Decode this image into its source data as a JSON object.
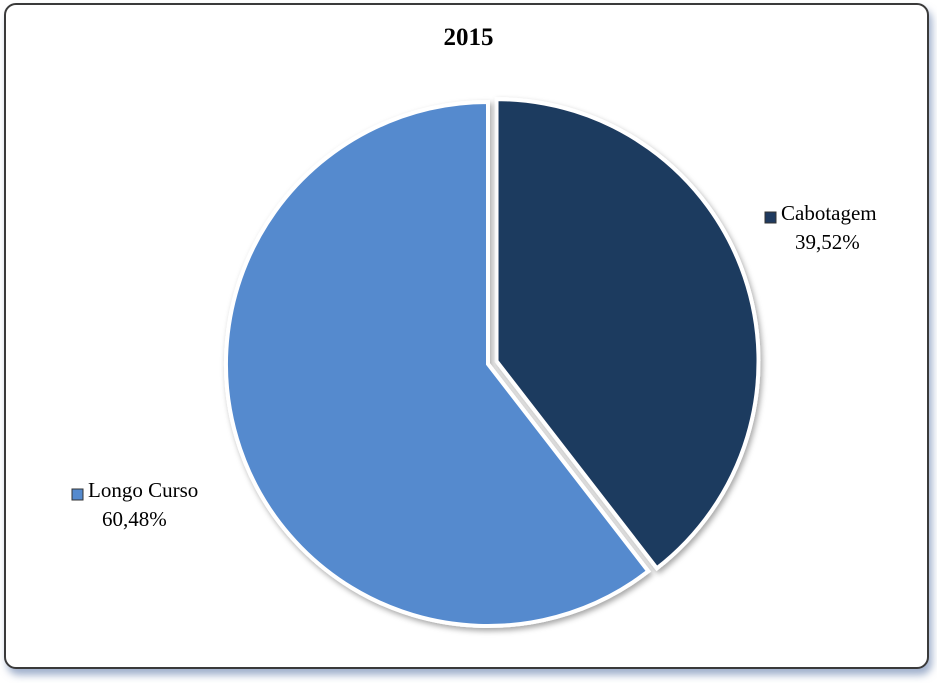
{
  "chart_data": {
    "type": "pie",
    "title": "2015",
    "categories": [
      "Cabotagem",
      "Longo Curso"
    ],
    "values": [
      39.52,
      60.48
    ],
    "value_labels": [
      "39,52%",
      "60,48%"
    ],
    "colors": {
      "Cabotagem": "#1f3a5f",
      "Longo Curso": "#558ace"
    },
    "exploded": "Cabotagem",
    "start_angle_deg": 0,
    "direction": "clockwise",
    "legend": "labels-beside-slices"
  }
}
